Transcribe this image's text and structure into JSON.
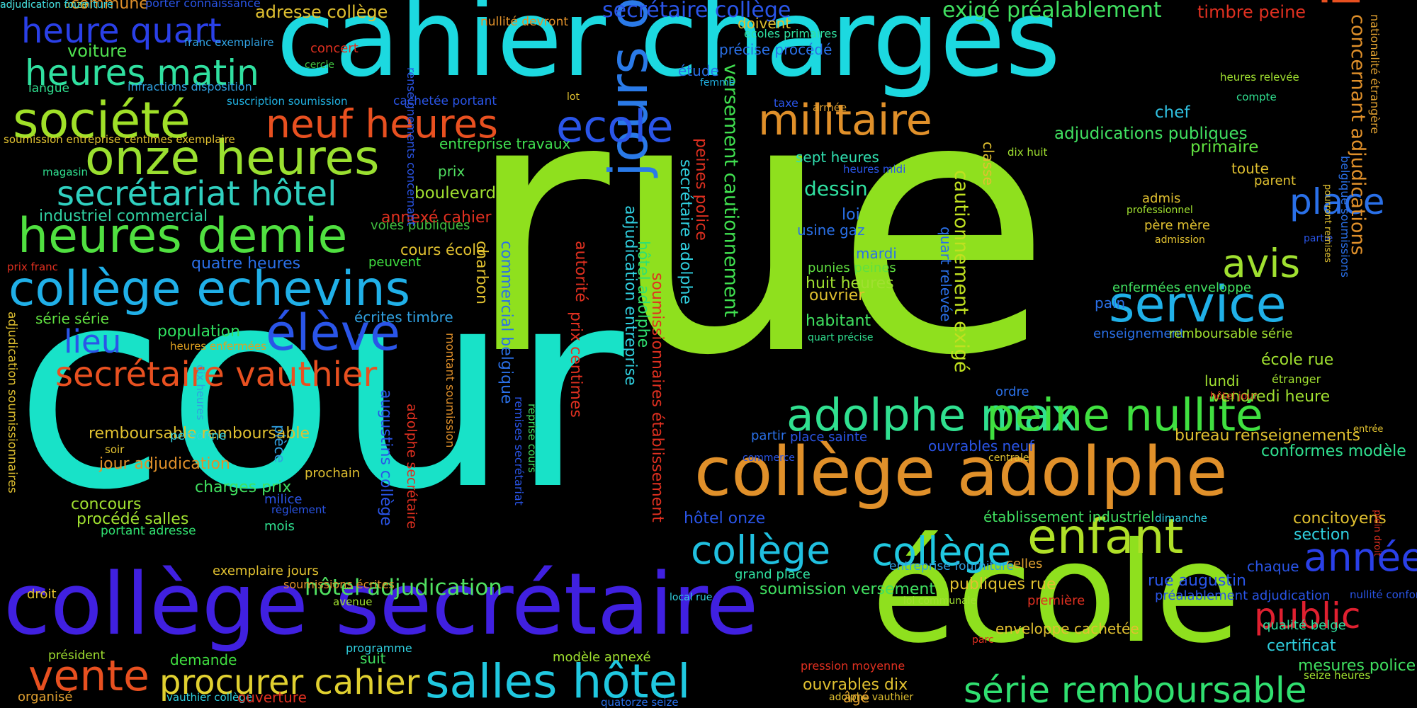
{
  "palette": {
    "background": "#000000",
    "lime": "#8fe01e",
    "cyan": "#1cd9e0",
    "teal": "#18e2c8",
    "blue": "#2a55e8",
    "violet": "#4020e0",
    "orange": "#e0902a",
    "red_orange": "#e85020",
    "green": "#30e070",
    "yellow": "#d8e030",
    "red": "#e03030"
  },
  "words": [
    {
      "text": "rue",
      "color": "#8fe01e"
    },
    {
      "text": "cour",
      "color": "#18e2c8"
    },
    {
      "text": "cahier charges",
      "color": "#1cd9e0"
    },
    {
      "text": "école",
      "color": "#8fe01e"
    },
    {
      "text": "collège secrétaire",
      "color": "#4020e0"
    },
    {
      "text": "collège adolphe",
      "color": "#e0902a"
    },
    {
      "text": "jours ouvrables",
      "color": "#2a7ae8"
    },
    {
      "text": "inscription",
      "color": "#e85020"
    },
    {
      "text": "société",
      "color": "#a0e028"
    },
    {
      "text": "onze heures",
      "color": "#9ae030"
    },
    {
      "text": "heures demie",
      "color": "#50e040"
    },
    {
      "text": "collège echevins",
      "color": "#20b0e8"
    },
    {
      "text": "militaire",
      "color": "#e0902a"
    },
    {
      "text": "neuf heures",
      "color": "#e85020"
    },
    {
      "text": "ecole",
      "color": "#2a55e8"
    },
    {
      "text": "service",
      "color": "#20b0e8"
    },
    {
      "text": "adolphe max",
      "color": "#30e090"
    },
    {
      "text": "peine nullité",
      "color": "#40e040"
    },
    {
      "text": "enfant",
      "color": "#b0e028"
    },
    {
      "text": "salles hôtel",
      "color": "#20c8e0"
    },
    {
      "text": "vente",
      "color": "#e85020"
    },
    {
      "text": "procurer cahier",
      "color": "#e0d030"
    },
    {
      "text": "série remboursable",
      "color": "#30e070"
    },
    {
      "text": "année",
      "color": "#2a40e8"
    },
    {
      "text": "public",
      "color": "#e02030"
    },
    {
      "text": "élève",
      "color": "#2a55e8"
    },
    {
      "text": "secrétaire vauthier",
      "color": "#e85020"
    },
    {
      "text": "secrétariat hôtel",
      "color": "#30d0c0"
    },
    {
      "text": "heures matin",
      "color": "#30e0a0"
    },
    {
      "text": "heure quart",
      "color": "#2a40e8"
    },
    {
      "text": "collège",
      "color": "#20c0e0"
    },
    {
      "text": "collège",
      "color": "#20c8e0"
    },
    {
      "text": "avis",
      "color": "#a0e030"
    },
    {
      "text": "place",
      "color": "#2a70e8"
    },
    {
      "text": "lieu",
      "color": "#2a55e8"
    },
    {
      "text": "hôtel adjudication",
      "color": "#50e060"
    },
    {
      "text": "concernant adjudications",
      "color": "#e0902a"
    },
    {
      "text": "versement cautionnement",
      "color": "#40e050"
    },
    {
      "text": "cautionnement exigé",
      "color": "#c0e020"
    },
    {
      "text": "secrétaire collège",
      "color": "#2a55e8"
    },
    {
      "text": "exigé préalablement",
      "color": "#40e060"
    },
    {
      "text": "timbre peine",
      "color": "#e03020"
    },
    {
      "text": "adresse collège",
      "color": "#e0c030"
    },
    {
      "text": "commune",
      "color": "#e0902a"
    },
    {
      "text": "porter connaissance",
      "color": "#2a55e8"
    },
    {
      "text": "voiture",
      "color": "#50e050"
    },
    {
      "text": "franc exemplaire",
      "color": "#30a0e0"
    },
    {
      "text": "concert",
      "color": "#e03020"
    },
    {
      "text": "cercle",
      "color": "#40c040"
    },
    {
      "text": "langue",
      "color": "#30e090"
    },
    {
      "text": "infractions disposition",
      "color": "#30a0e0"
    },
    {
      "text": "suscription soumission",
      "color": "#20b0e0"
    },
    {
      "text": "cachetée portant",
      "color": "#2a55e8"
    },
    {
      "text": "soumission entreprise centimes exemplaire",
      "color": "#e0c030"
    },
    {
      "text": "magasin",
      "color": "#30e090"
    },
    {
      "text": "industriel commercial",
      "color": "#30d0a0"
    },
    {
      "text": "prix franc",
      "color": "#e03020"
    },
    {
      "text": "quatre heures",
      "color": "#2a70e8"
    },
    {
      "text": "série série",
      "color": "#60e040"
    },
    {
      "text": "population",
      "color": "#30e060"
    },
    {
      "text": "heures enfermées",
      "color": "#e0a020"
    },
    {
      "text": "écrites timbre",
      "color": "#30a0e0"
    },
    {
      "text": "annexé cahier",
      "color": "#e03020"
    },
    {
      "text": "voies publiques",
      "color": "#40c040"
    },
    {
      "text": "cours école",
      "color": "#e0c030"
    },
    {
      "text": "peuvent",
      "color": "#40e040"
    },
    {
      "text": "boulevard",
      "color": "#a0e030"
    },
    {
      "text": "entreprise travaux",
      "color": "#40e050"
    },
    {
      "text": "prix",
      "color": "#50e060"
    },
    {
      "text": "nullité devront",
      "color": "#e0902a"
    },
    {
      "text": "doivent",
      "color": "#e0c030"
    },
    {
      "text": "écoles primaires",
      "color": "#30e0a0"
    },
    {
      "text": "précise procédé",
      "color": "#2a70e8"
    },
    {
      "text": "étude",
      "color": "#2a70e8"
    },
    {
      "text": "femme",
      "color": "#20b0e0"
    },
    {
      "text": "lot",
      "color": "#e0c030"
    },
    {
      "text": "taxe",
      "color": "#2a55e8"
    },
    {
      "text": "armée",
      "color": "#e0a030"
    },
    {
      "text": "compte",
      "color": "#30e090"
    },
    {
      "text": "heures relevée",
      "color": "#a0e030"
    },
    {
      "text": "chef",
      "color": "#30c0e0"
    },
    {
      "text": "adjudications publiques",
      "color": "#40e060"
    },
    {
      "text": "primaire",
      "color": "#60e040"
    },
    {
      "text": "dix huit",
      "color": "#a0e030"
    },
    {
      "text": "toute",
      "color": "#e0c030"
    },
    {
      "text": "parent",
      "color": "#e0c030"
    },
    {
      "text": "sept heures",
      "color": "#30e0b0"
    },
    {
      "text": "heures midi",
      "color": "#2a55e8"
    },
    {
      "text": "dessin",
      "color": "#30e0a0"
    },
    {
      "text": "loi",
      "color": "#2a70e8"
    },
    {
      "text": "usine gaz",
      "color": "#2a70e8"
    },
    {
      "text": "admis",
      "color": "#e0c030"
    },
    {
      "text": "professionnel",
      "color": "#a0e030"
    },
    {
      "text": "père mère",
      "color": "#e0c030"
    },
    {
      "text": "admission",
      "color": "#e0c030"
    },
    {
      "text": "partie",
      "color": "#2a55e8"
    },
    {
      "text": "mardi",
      "color": "#2a70e8"
    },
    {
      "text": "punies peines",
      "color": "#60e040"
    },
    {
      "text": "huit heures",
      "color": "#a0e030"
    },
    {
      "text": "ouvrier",
      "color": "#e0c030"
    },
    {
      "text": "habitant",
      "color": "#40e060"
    },
    {
      "text": "quart précise",
      "color": "#30e090"
    },
    {
      "text": "enfermées enveloppe",
      "color": "#40e060"
    },
    {
      "text": "pain",
      "color": "#2a70e8"
    },
    {
      "text": "enseignement",
      "color": "#2a70e8"
    },
    {
      "text": "remboursable série",
      "color": "#a0e030"
    },
    {
      "text": "école rue",
      "color": "#a0e030"
    },
    {
      "text": "étranger",
      "color": "#a0e030"
    },
    {
      "text": "lundi",
      "color": "#a0e030"
    },
    {
      "text": "vendredi heure",
      "color": "#a0e030"
    },
    {
      "text": "hôtel jour",
      "color": "#e03020"
    },
    {
      "text": "ordre",
      "color": "#2a70e8"
    },
    {
      "text": "partir",
      "color": "#2a70e8"
    },
    {
      "text": "place sainte",
      "color": "#2a55e8"
    },
    {
      "text": "ouvrables neuf",
      "color": "#2a55e8"
    },
    {
      "text": "bureau renseignements",
      "color": "#e0c030"
    },
    {
      "text": "conformes modèle",
      "color": "#30e090"
    },
    {
      "text": "entrée",
      "color": "#e0c030"
    },
    {
      "text": "commerce",
      "color": "#2a55e8"
    },
    {
      "text": "centrale",
      "color": "#e0c030"
    },
    {
      "text": "hôtel onze",
      "color": "#2a55e8"
    },
    {
      "text": "établissement industriel",
      "color": "#40e060"
    },
    {
      "text": "concitoyens",
      "color": "#e0c030"
    },
    {
      "text": "section",
      "color": "#30d0e0"
    },
    {
      "text": "dimanche",
      "color": "#30d0e0"
    },
    {
      "text": "plein droit",
      "color": "#e03020"
    },
    {
      "text": "chaque",
      "color": "#2a55e8"
    },
    {
      "text": "celles",
      "color": "#e0a030"
    },
    {
      "text": "entreprise fourniture",
      "color": "#30a0e0"
    },
    {
      "text": "grand place",
      "color": "#30e0a0"
    },
    {
      "text": "soumission versement",
      "color": "#40e060"
    },
    {
      "text": "publiques rue",
      "color": "#e0c030"
    },
    {
      "text": "rue augustin",
      "color": "#2a55e8"
    },
    {
      "text": "préalablement adjudication",
      "color": "#2a55e8"
    },
    {
      "text": "nullité conformes",
      "color": "#2a55e8"
    },
    {
      "text": "première",
      "color": "#e03020"
    },
    {
      "text": "loi communale",
      "color": "#a0e030"
    },
    {
      "text": "local rue",
      "color": "#30d0e0"
    },
    {
      "text": "qualité belge",
      "color": "#30e0a0"
    },
    {
      "text": "enveloppe cachetée",
      "color": "#e0c030"
    },
    {
      "text": "parc",
      "color": "#e03020"
    },
    {
      "text": "certificat",
      "color": "#30d0e0"
    },
    {
      "text": "mesures police",
      "color": "#40e060"
    },
    {
      "text": "seize heures",
      "color": "#a0e030"
    },
    {
      "text": "pression moyenne",
      "color": "#e03020"
    },
    {
      "text": "ouvrables dix",
      "color": "#e0c030"
    },
    {
      "text": "adolphe vauthier",
      "color": "#e0c030"
    },
    {
      "text": "âgé",
      "color": "#e0a030"
    },
    {
      "text": "quatorze seize",
      "color": "#2a70e8"
    },
    {
      "text": "remboursable remboursable",
      "color": "#e0c030"
    },
    {
      "text": "personne",
      "color": "#30d0e0"
    },
    {
      "text": "soir",
      "color": "#e0c030"
    },
    {
      "text": "jour adjudication",
      "color": "#e0902a"
    },
    {
      "text": "charges prix",
      "color": "#40e060"
    },
    {
      "text": "concours",
      "color": "#a0e030"
    },
    {
      "text": "procédé salles",
      "color": "#a0e030"
    },
    {
      "text": "portant adresse",
      "color": "#30e070"
    },
    {
      "text": "exemplaire jours",
      "color": "#e0c030"
    },
    {
      "text": "droit",
      "color": "#e0c030"
    },
    {
      "text": "président",
      "color": "#a0e030"
    },
    {
      "text": "demande",
      "color": "#40e040"
    },
    {
      "text": "programme",
      "color": "#30d0e0"
    },
    {
      "text": "suit",
      "color": "#40e060"
    },
    {
      "text": "modèle annexé",
      "color": "#a0e030"
    },
    {
      "text": "organisé",
      "color": "#e0a030"
    },
    {
      "text": "vauthier collège",
      "color": "#30d0e0"
    },
    {
      "text": "ouverture",
      "color": "#e03020"
    },
    {
      "text": "soumissions écrites",
      "color": "#e0902a"
    },
    {
      "text": "avenue",
      "color": "#a0e030"
    },
    {
      "text": "prochain",
      "color": "#e0c030"
    },
    {
      "text": "milice",
      "color": "#2a55e8"
    },
    {
      "text": "règlement",
      "color": "#2a55e8"
    },
    {
      "text": "mois",
      "color": "#30e090"
    },
    {
      "text": "dix heures",
      "color": "#30a0e0"
    },
    {
      "text": "pièce",
      "color": "#30a0e0"
    },
    {
      "text": "examen",
      "color": "#2a55e8"
    },
    {
      "text": "adjudication soumissionnaires",
      "color": "#e0c030"
    },
    {
      "text": "augustins collège",
      "color": "#2a55e8"
    },
    {
      "text": "adolphe secrétaire",
      "color": "#e03020"
    },
    {
      "text": "montant soumission",
      "color": "#e0902a"
    },
    {
      "text": "charbon",
      "color": "#e0c030"
    },
    {
      "text": "commercial belgique",
      "color": "#2a70e8"
    },
    {
      "text": "remises secrétariat",
      "color": "#2a55e8"
    },
    {
      "text": "reprise cours",
      "color": "#40e060"
    },
    {
      "text": "prix centimes",
      "color": "#e03020"
    },
    {
      "text": "autorité",
      "color": "#e03020"
    },
    {
      "text": "adjudication entreprise",
      "color": "#30d0e0"
    },
    {
      "text": "hôtel adolphe",
      "color": "#30e070"
    },
    {
      "text": "soumissionnaires établissement",
      "color": "#e03020"
    },
    {
      "text": "secrétaire adolphe",
      "color": "#30d0e0"
    },
    {
      "text": "peines police",
      "color": "#e03020"
    },
    {
      "text": "renseignements concernant",
      "color": "#2a55e8"
    },
    {
      "text": "quart relevée",
      "color": "#2a70e8"
    },
    {
      "text": "classe",
      "color": "#e0c030"
    },
    {
      "text": "pourront remises",
      "color": "#e0c030"
    },
    {
      "text": "belgique soumissions",
      "color": "#2a70e8"
    },
    {
      "text": "nationalité étrangère",
      "color": "#e0a030"
    },
    {
      "text": "adjudication onze",
      "color": "#e0c030"
    },
    {
      "text": "adjudication fourniture",
      "color": "#30d0e0"
    }
  ]
}
